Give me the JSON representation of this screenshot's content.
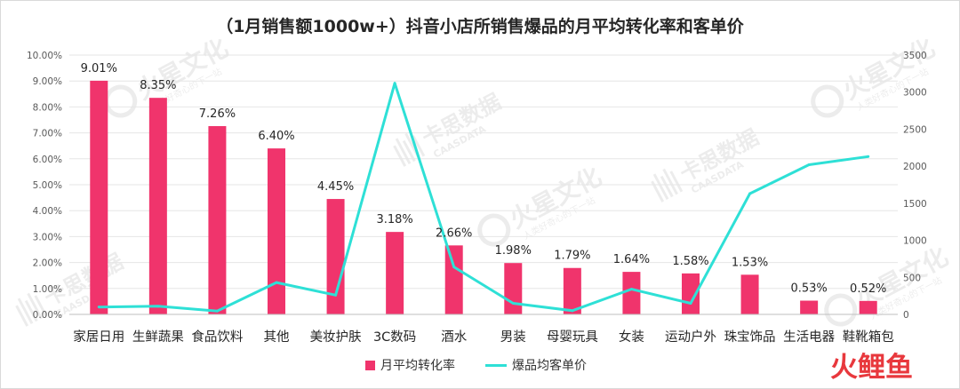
{
  "chart_data": {
    "type": "bar+line",
    "title": "（1月销售额1000w+）抖音小店所销售爆品的月平均转化率和客单价",
    "categories": [
      "家居日用",
      "生鲜蔬果",
      "食品饮料",
      "其他",
      "美妆护肤",
      "3C数码",
      "酒水",
      "男装",
      "母婴玩具",
      "女装",
      "运动户外",
      "珠宝饰品",
      "生活电器",
      "鞋靴箱包"
    ],
    "series": [
      {
        "name": "月平均转化率",
        "type": "bar",
        "axis": "left",
        "color": "#f0346c",
        "values": [
          9.01,
          8.35,
          7.26,
          6.4,
          4.45,
          3.18,
          2.66,
          1.98,
          1.79,
          1.64,
          1.58,
          1.53,
          0.53,
          0.52
        ],
        "labels": [
          "9.01%",
          "8.35%",
          "7.26%",
          "6.40%",
          "4.45%",
          "3.18%",
          "2.66%",
          "1.98%",
          "1.79%",
          "1.64%",
          "1.58%",
          "1.53%",
          "0.53%",
          "0.52%"
        ]
      },
      {
        "name": "爆品均客单价",
        "type": "line",
        "axis": "right",
        "color": "#2ee0d6",
        "values": [
          100,
          110,
          45,
          430,
          260,
          3120,
          640,
          150,
          50,
          340,
          150,
          1630,
          2020,
          2130
        ]
      }
    ],
    "y_left": {
      "range": [
        0,
        10
      ],
      "ticks": [
        "0.00%",
        "1.00%",
        "2.00%",
        "3.00%",
        "4.00%",
        "5.00%",
        "6.00%",
        "7.00%",
        "8.00%",
        "9.00%",
        "10.00%"
      ]
    },
    "y_right": {
      "range": [
        0,
        3500
      ],
      "ticks": [
        "0",
        "500",
        "1000",
        "1500",
        "2000",
        "2500",
        "3000",
        "3500"
      ]
    },
    "grid": true,
    "legend_position": "bottom"
  },
  "watermarks": {
    "huoxing": "火星文化",
    "huoxing_sub": "人类好奇心的下一站",
    "qiusi": "卡思数据",
    "qiusi_sub": "CAASDATA"
  },
  "brand": {
    "text": "火鲤鱼",
    "color": "#e8383d"
  }
}
